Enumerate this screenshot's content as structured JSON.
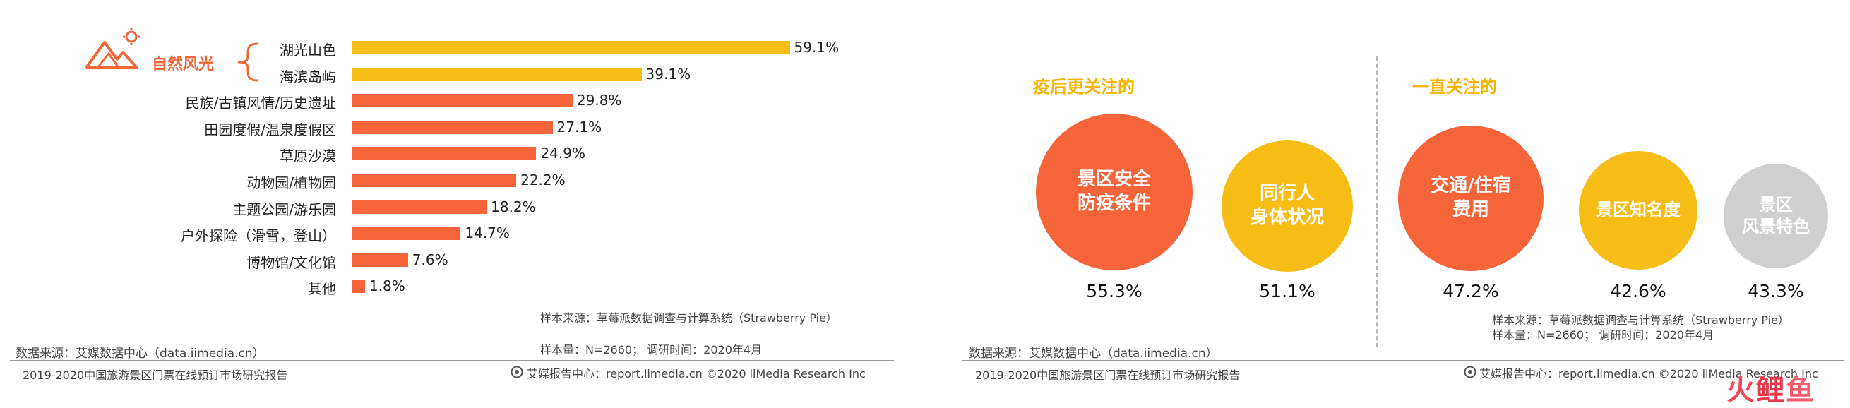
{
  "left": {
    "chart_data": {
      "type": "bar",
      "orientation": "horizontal",
      "categories": [
        "湖光山色",
        "海滨岛屿",
        "民族/古镇风情/历史遗址",
        "田园度假/温泉度假区",
        "草原沙漠",
        "动物园/植物园",
        "主题公园/游乐园",
        "户外探险（滑雪，登山）",
        "博物馆/文化馆",
        "其他"
      ],
      "values": [
        59.1,
        39.1,
        29.8,
        27.1,
        24.9,
        22.2,
        18.2,
        14.7,
        7.6,
        1.8
      ],
      "value_labels": [
        "59.1%",
        "39.1%",
        "29.8%",
        "27.1%",
        "24.9%",
        "22.2%",
        "18.2%",
        "14.7%",
        "7.6%",
        "1.8%"
      ],
      "colors": [
        "#f6bd16",
        "#f6bd16",
        "#f6643a",
        "#f6643a",
        "#f6643a",
        "#f6643a",
        "#f6643a",
        "#f6643a",
        "#f6643a",
        "#f6643a"
      ],
      "xlim": [
        0,
        70
      ],
      "grid": false
    },
    "group_label": "自然风光",
    "sample_source": "样本来源：草莓派数据调查与计算系统（Strawberry Pie）",
    "sample_size": "样本量：N=2660；  调研时间：2020年4月",
    "data_source": "数据来源：艾媒数据中心（data.iimedia.cn）",
    "report_title": "2019-2020中国旅游景区门票在线预订市场研究报告",
    "report_center": "艾媒报告中心：report.iimedia.cn   ©2020  iiMedia Research  Inc"
  },
  "right": {
    "section1_title": "疫后更关注的",
    "section2_title": "一直关注的",
    "chart_data": {
      "type": "bubble",
      "groups": [
        "疫后更关注的",
        "一直关注的"
      ],
      "items": [
        {
          "label": "景区安全\n防疫条件",
          "value": 55.3,
          "value_label": "55.3%",
          "group": "疫后更关注的",
          "color": "#f6643a"
        },
        {
          "label": "同行人\n身体状况",
          "value": 51.1,
          "value_label": "51.1%",
          "group": "疫后更关注的",
          "color": "#f6bd16"
        },
        {
          "label": "交通/住宿\n费用",
          "value": 47.2,
          "value_label": "47.2%",
          "group": "一直关注的",
          "color": "#f6643a"
        },
        {
          "label": "景区知名度",
          "value": 42.6,
          "value_label": "42.6%",
          "group": "一直关注的",
          "color": "#f6bd16"
        },
        {
          "label": "景区\n风景特色",
          "value": 43.3,
          "value_label": "43.3%",
          "group": "一直关注的",
          "color": "#cfcfcf"
        }
      ]
    },
    "sample_source": "样本来源：草莓派数据调查与计算系统（Strawberry  Pie）",
    "sample_size": "样本量：N=2660；  调研时间：2020年4月",
    "data_source": "数据来源：艾媒数据中心（data.iimedia.cn）",
    "report_title": "2019-2020中国旅游景区门票在线预订市场研究报告",
    "report_center": "艾媒报告中心：report.iimedia.cn   ©2020  iiMedia Research  Inc"
  },
  "watermark": "火鲤鱼"
}
